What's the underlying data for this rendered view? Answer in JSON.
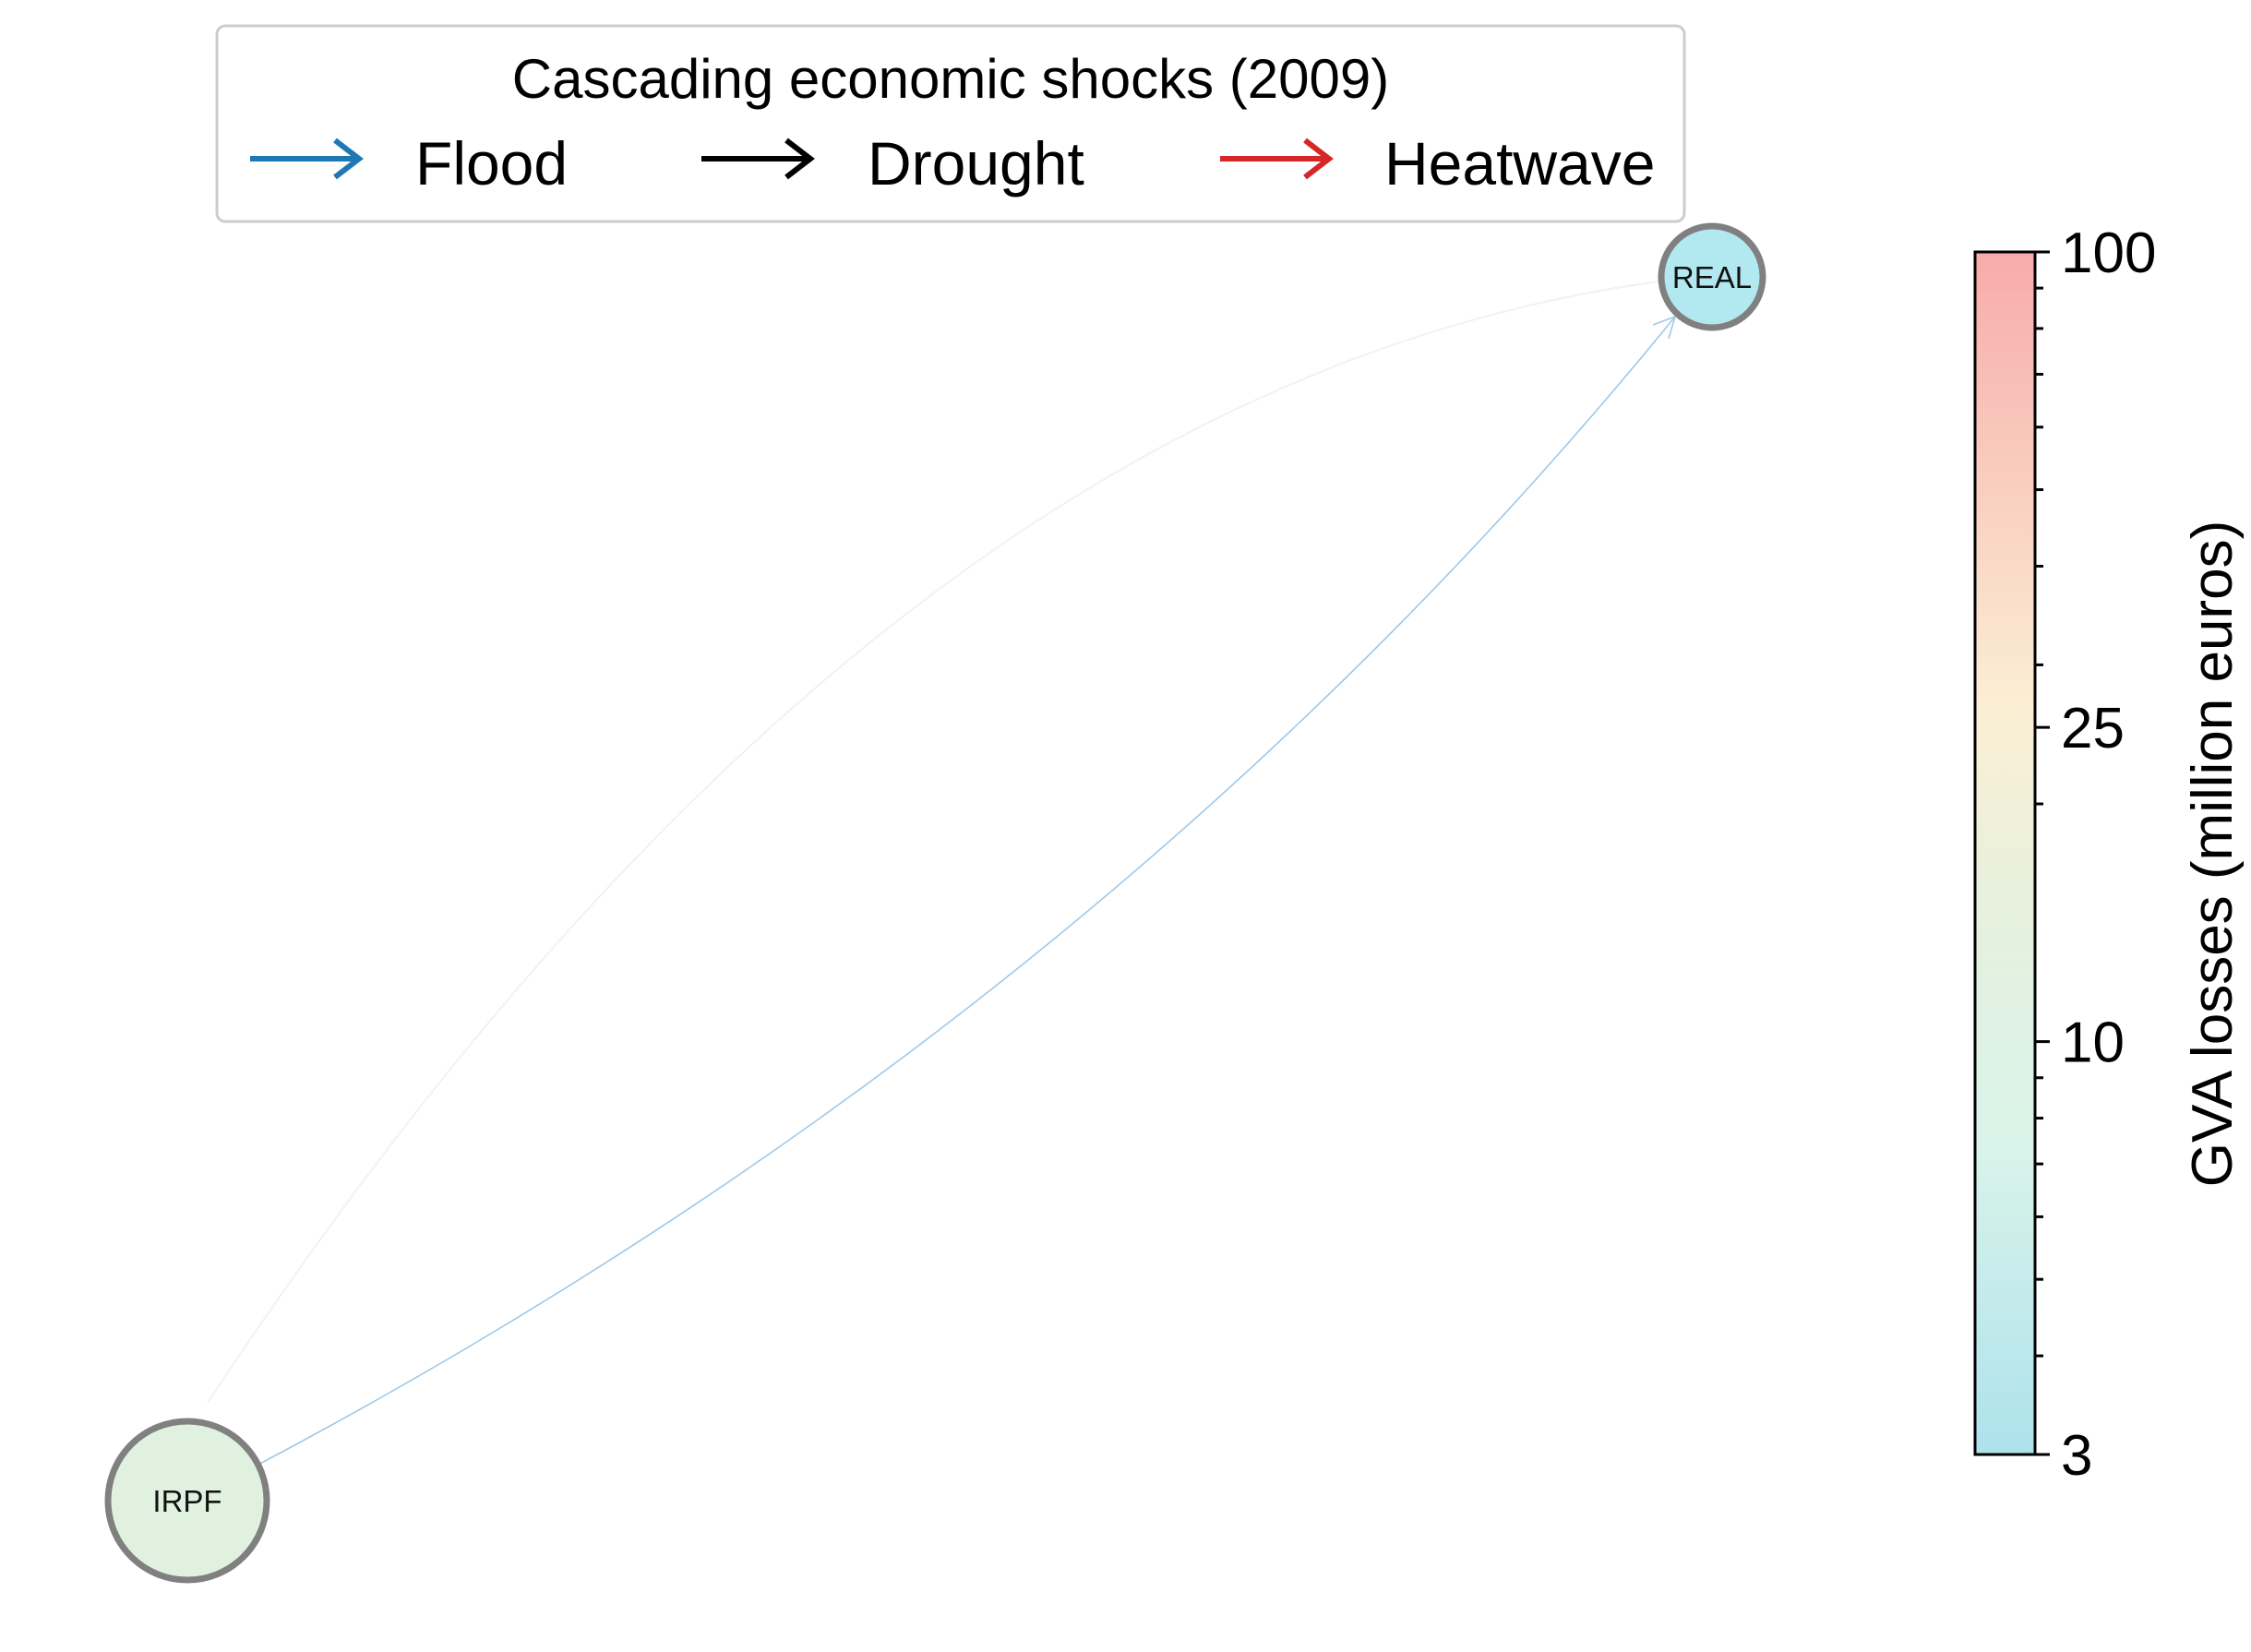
{
  "legend": {
    "title": "Cascading economic shocks (2009)",
    "entries": [
      {
        "label": "Flood",
        "color": "#1f77b4"
      },
      {
        "label": "Drought",
        "color": "#000000"
      },
      {
        "label": "Heatwave",
        "color": "#d62728"
      }
    ]
  },
  "nodes": [
    {
      "id": "IRPF",
      "label": "IRPF",
      "fill": "#e1f1e0",
      "stroke": "#808080"
    },
    {
      "id": "REAL",
      "label": "REAL",
      "fill": "#b2e8f0",
      "stroke": "#808080"
    }
  ],
  "edges": [
    {
      "from": "IRPF",
      "to": "REAL",
      "hazard": "Flood",
      "color": "#9ec9e8"
    },
    {
      "from": "REAL",
      "to": "IRPF",
      "hazard": "Drought",
      "color": "#f2f2f2"
    }
  ],
  "colorbar": {
    "label": "GVA losses (million euros)",
    "scale": "log",
    "min": 3,
    "max": 100,
    "ticks": [
      {
        "value": 3,
        "label": "3"
      },
      {
        "value": 10,
        "label": "10"
      },
      {
        "value": 25,
        "label": "25"
      },
      {
        "value": 100,
        "label": "100"
      }
    ],
    "colors": [
      "#ade2ec",
      "#d8f3ea",
      "#e6f1de",
      "#fbefd4",
      "#f9cfc1",
      "#f8abab"
    ]
  }
}
